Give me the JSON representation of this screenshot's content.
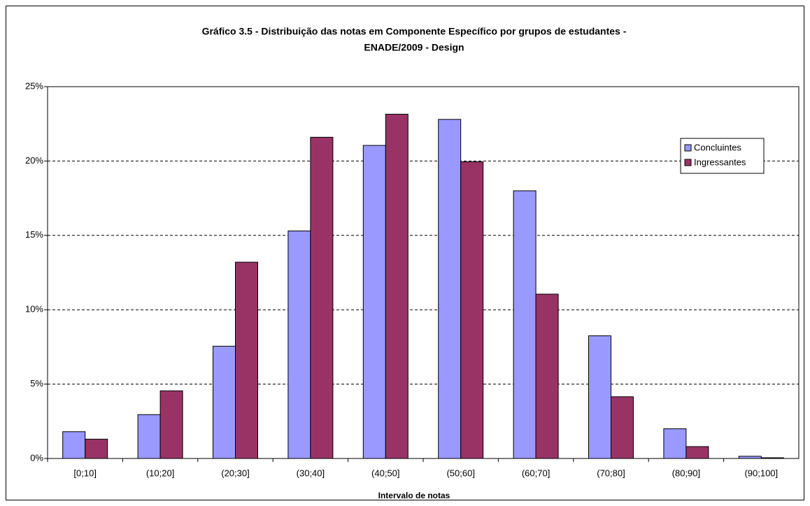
{
  "chart_data": {
    "type": "bar",
    "title": [
      "Gráfico 3.5 - Distribuição das notas em Componente Específico por grupos de estudantes -",
      "ENADE/2009 - Design"
    ],
    "x_label": "Intervalo de notas",
    "categories": [
      "[0;10]",
      "(10;20]",
      "(20;30]",
      "(30;40]",
      "(40;50]",
      "(50;60]",
      "(60;70]",
      "(70;80]",
      "(80;90]",
      "(90;100]"
    ],
    "series": [
      {
        "name": "Concluintes",
        "color": "#9999ff",
        "values": [
          1.8,
          2.95,
          7.55,
          15.3,
          21.05,
          22.8,
          18.0,
          8.25,
          2.0,
          0.15
        ]
      },
      {
        "name": "Ingressantes",
        "color": "#993366",
        "values": [
          1.3,
          4.55,
          13.2,
          21.6,
          23.15,
          19.95,
          11.05,
          4.15,
          0.8,
          0.05
        ]
      }
    ],
    "ylim": [
      0,
      25
    ],
    "yticks": [
      {
        "value": 0,
        "label": "0%"
      },
      {
        "value": 5,
        "label": "5%"
      },
      {
        "value": 10,
        "label": "10%"
      },
      {
        "value": 15,
        "label": "15%"
      },
      {
        "value": 20,
        "label": "20%"
      },
      {
        "value": 25,
        "label": "25%"
      }
    ],
    "grid": true,
    "legend": "right"
  }
}
